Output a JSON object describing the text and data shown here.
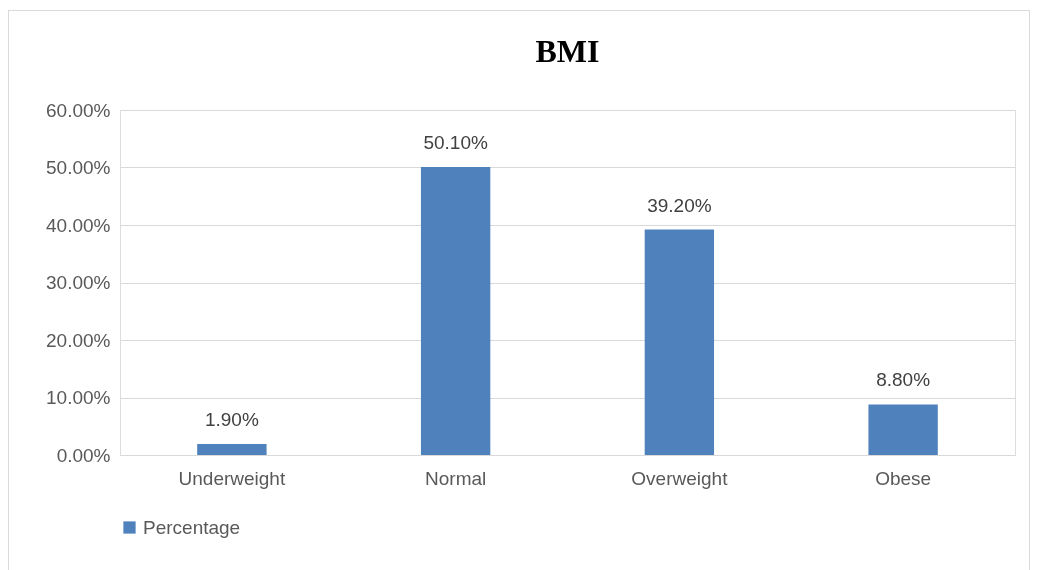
{
  "chart_data": {
    "type": "bar",
    "title": "BMI",
    "categories": [
      "Underweight",
      "Normal",
      "Overweight",
      "Obese"
    ],
    "series": [
      {
        "name": "Percentage",
        "color": "#4f81bd",
        "values": [
          1.9,
          50.1,
          39.2,
          8.8
        ],
        "value_labels": [
          "1.90%",
          "50.10%",
          "39.20%",
          "8.80%"
        ]
      }
    ],
    "ylim": [
      0,
      60
    ],
    "yticks": [
      {
        "value": 0,
        "label": "0.00%"
      },
      {
        "value": 10,
        "label": "10.00%"
      },
      {
        "value": 20,
        "label": "20.00%"
      },
      {
        "value": 30,
        "label": "30.00%"
      },
      {
        "value": 40,
        "label": "40.00%"
      },
      {
        "value": 50,
        "label": "50.00%"
      },
      {
        "value": 60,
        "label": "60.00%"
      }
    ],
    "grid": "y",
    "legend": "bottom"
  }
}
